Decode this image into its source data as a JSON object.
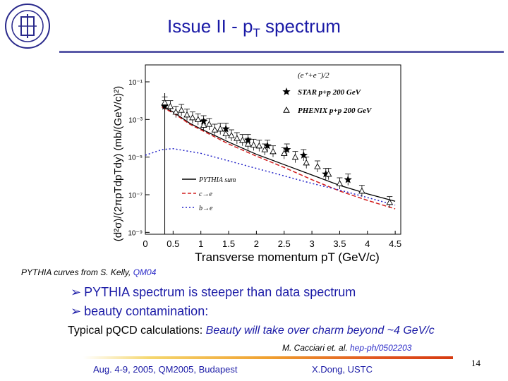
{
  "slide": {
    "title_main": "Issue II - p",
    "title_sub": "T",
    "title_rest": " spectrum",
    "caption_text": "PYTHIA curves from S. Kelly, ",
    "caption_ref": "QM04",
    "bullets": [
      "PYTHIA spectrum is steeper than data spectrum",
      "beauty contamination:"
    ],
    "calc_prefix": "Typical pQCD calculations: ",
    "calc_highlight": "Beauty will take over charm beyond ~4 GeV/c",
    "cite_text": "M. Cacciari et. al. ",
    "cite_ref": "hep-ph/0502203",
    "footer_left": "Aug. 4-9, 2005, QM2005, Budapest",
    "footer_mid": "X.Dong,  USTC",
    "page_number": "14"
  },
  "colors": {
    "title": "#1a1aa6",
    "pythia_total": "#000000",
    "charm": "#d21e1e",
    "beauty": "#2323c8",
    "accent_rule": "#5a5aa8"
  },
  "chart_data": {
    "type": "scatter",
    "x_scale": "linear",
    "y_scale": "log",
    "xlabel": "Transverse momentum pT (GeV/c)",
    "ylabel": "(d²σ)/(2πpTdpTdy) (mb/(GeV/c)²)",
    "xlim": [
      0,
      4.6
    ],
    "ylim": [
      -9.1,
      -0.1
    ],
    "x_ticks": [
      0,
      0.5,
      1,
      1.5,
      2,
      2.5,
      3,
      3.5,
      4,
      4.5
    ],
    "x_tick_labels": [
      "0",
      "0.5",
      "1",
      "1.5",
      "2",
      "2.5",
      "3",
      "3.5",
      "4",
      "4.5"
    ],
    "y_ticks": [
      -1,
      -3,
      -5,
      -7,
      -9
    ],
    "y_tick_labels": [
      "10⁻¹",
      "10⁻³",
      "10⁻⁵",
      "10⁻⁷",
      "10⁻⁹"
    ],
    "legend_top": {
      "title": "(e⁺+e⁻)/2",
      "entries": [
        {
          "marker": "star",
          "label": "STAR p+p 200 GeV"
        },
        {
          "marker": "triangle",
          "label": "PHENIX p+p 200 GeV"
        }
      ]
    },
    "legend_bottom": {
      "entries": [
        {
          "style": "solid",
          "label": "PYTHIA sum"
        },
        {
          "style": "dashed",
          "label": "c→e"
        },
        {
          "style": "dotted",
          "label": "b→e"
        }
      ]
    },
    "series": [
      {
        "name": "STAR p+p 200 GeV",
        "marker": "star",
        "x": [
          0.35,
          1.05,
          1.45,
          1.85,
          2.2,
          2.55,
          2.85,
          3.25,
          3.65
        ],
        "y": [
          -2.3,
          -3.1,
          -3.5,
          -4.1,
          -4.4,
          -4.6,
          -4.9,
          -5.9,
          -6.2
        ]
      },
      {
        "name": "PHENIX p+p 200 GeV",
        "marker": "triangle",
        "x": [
          0.35,
          0.45,
          0.55,
          0.65,
          0.75,
          0.85,
          0.95,
          1.05,
          1.15,
          1.25,
          1.35,
          1.45,
          1.55,
          1.65,
          1.75,
          1.85,
          1.95,
          2.05,
          2.15,
          2.3,
          2.5,
          2.7,
          2.9,
          3.1,
          3.3,
          3.5,
          3.9,
          4.4
        ],
        "y": [
          -2.1,
          -2.3,
          -2.6,
          -2.5,
          -2.75,
          -2.9,
          -3.0,
          -3.3,
          -3.25,
          -3.55,
          -3.5,
          -3.75,
          -3.85,
          -4.0,
          -4.1,
          -4.3,
          -4.35,
          -4.4,
          -4.6,
          -4.7,
          -4.8,
          -5.0,
          -5.3,
          -5.5,
          -5.9,
          -6.4,
          -6.8,
          -7.4
        ]
      },
      {
        "name": "PYTHIA sum",
        "type": "line",
        "style": "solid",
        "x": [
          0.3,
          0.5,
          0.8,
          1.0,
          1.5,
          2.0,
          2.5,
          3.0,
          3.5,
          4.0,
          4.5
        ],
        "y": [
          -2.3,
          -2.6,
          -3.2,
          -3.5,
          -4.2,
          -4.85,
          -5.4,
          -5.95,
          -6.5,
          -6.95,
          -7.35
        ]
      },
      {
        "name": "c→e",
        "type": "line",
        "style": "dashed",
        "x": [
          0.3,
          0.5,
          0.8,
          1.0,
          1.5,
          2.0,
          2.5,
          3.0,
          3.5,
          4.0,
          4.5
        ],
        "y": [
          -2.35,
          -2.65,
          -3.25,
          -3.55,
          -4.3,
          -4.95,
          -5.55,
          -6.2,
          -6.8,
          -7.3,
          -7.75
        ]
      },
      {
        "name": "b→e",
        "type": "line",
        "style": "dotted",
        "x": [
          0.0,
          0.3,
          0.5,
          1.0,
          1.5,
          2.0,
          2.5,
          3.0,
          3.5,
          4.0,
          4.5
        ],
        "y": [
          -4.9,
          -4.6,
          -4.55,
          -4.8,
          -5.2,
          -5.6,
          -6.0,
          -6.4,
          -6.75,
          -7.15,
          -7.55
        ]
      }
    ]
  }
}
